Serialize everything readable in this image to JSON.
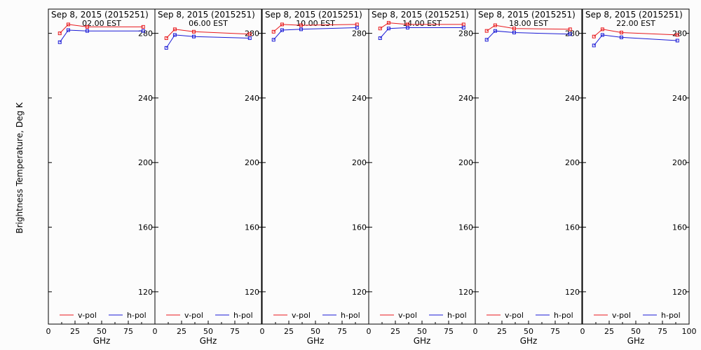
{
  "ylabel": "Brightness Temperature, Deg K",
  "xlabel": "GHz",
  "colors": {
    "vpol": "#e8181c",
    "hpol": "#1a1ad6",
    "axis": "#000000",
    "background": "#fcfcfc"
  },
  "chart_data": [
    {
      "type": "line",
      "title": "Sep  8, 2015 (2015251)",
      "subtitle": "02.00 EST",
      "x": [
        10.7,
        18.7,
        36.5,
        89.0
      ],
      "xlim": [
        0,
        100
      ],
      "ylim": [
        100,
        295
      ],
      "yticks": [
        120,
        160,
        200,
        240,
        280
      ],
      "xticks": [
        0,
        25,
        50,
        75
      ],
      "series": [
        {
          "name": "v-pol",
          "values": [
            280.0,
            285.5,
            284.0,
            284.0
          ]
        },
        {
          "name": "h-pol",
          "values": [
            274.5,
            282.0,
            281.5,
            281.5
          ]
        }
      ]
    },
    {
      "type": "line",
      "title": "Sep  8, 2015 (2015251)",
      "subtitle": "06.00 EST",
      "x": [
        10.7,
        18.7,
        36.5,
        89.0
      ],
      "xlim": [
        0,
        100
      ],
      "ylim": [
        100,
        295
      ],
      "yticks": [
        120,
        160,
        200,
        240,
        280
      ],
      "xticks": [
        0,
        25,
        50,
        75
      ],
      "series": [
        {
          "name": "v-pol",
          "values": [
            277.0,
            282.5,
            281.0,
            279.5
          ]
        },
        {
          "name": "h-pol",
          "values": [
            271.0,
            279.0,
            278.0,
            277.0
          ]
        }
      ]
    },
    {
      "type": "line",
      "title": "Sep  8, 2015 (2015251)",
      "subtitle": "10.00 EST",
      "x": [
        10.7,
        18.7,
        36.5,
        89.0
      ],
      "xlim": [
        0,
        100
      ],
      "ylim": [
        100,
        295
      ],
      "yticks": [
        120,
        160,
        200,
        240,
        280
      ],
      "xticks": [
        0,
        25,
        50,
        75
      ],
      "series": [
        {
          "name": "v-pol",
          "values": [
            281.0,
            285.5,
            285.0,
            285.5
          ]
        },
        {
          "name": "h-pol",
          "values": [
            276.0,
            282.0,
            282.5,
            283.5
          ]
        }
      ]
    },
    {
      "type": "line",
      "title": "Sep  8, 2015 (2015251)",
      "subtitle": "14.00 EST",
      "x": [
        10.7,
        18.7,
        36.5,
        89.0
      ],
      "xlim": [
        0,
        100
      ],
      "ylim": [
        100,
        295
      ],
      "yticks": [
        120,
        160,
        200,
        240,
        280
      ],
      "xticks": [
        0,
        25,
        50,
        75
      ],
      "series": [
        {
          "name": "v-pol",
          "values": [
            283.0,
            286.5,
            285.5,
            285.5
          ]
        },
        {
          "name": "h-pol",
          "values": [
            277.0,
            283.0,
            283.5,
            283.5
          ]
        }
      ]
    },
    {
      "type": "line",
      "title": "Sep  8, 2015 (2015251)",
      "subtitle": "18.00 EST",
      "x": [
        10.7,
        18.7,
        36.5,
        89.0
      ],
      "xlim": [
        0,
        100
      ],
      "ylim": [
        100,
        295
      ],
      "yticks": [
        120,
        160,
        200,
        240,
        280
      ],
      "xticks": [
        0,
        25,
        50,
        75
      ],
      "series": [
        {
          "name": "v-pol",
          "values": [
            281.5,
            285.0,
            283.0,
            282.5
          ]
        },
        {
          "name": "h-pol",
          "values": [
            276.0,
            281.5,
            280.5,
            279.5
          ]
        }
      ]
    },
    {
      "type": "line",
      "title": "Sep  8, 2015 (2015251)",
      "subtitle": "22.00 EST",
      "x": [
        10.7,
        18.7,
        36.5,
        89.0
      ],
      "xlim": [
        0,
        100
      ],
      "ylim": [
        100,
        295
      ],
      "yticks": [
        120,
        160,
        200,
        240,
        280
      ],
      "xticks": [
        0,
        25,
        50,
        75,
        100
      ],
      "series": [
        {
          "name": "v-pol",
          "values": [
            278.0,
            282.5,
            280.5,
            279.0
          ]
        },
        {
          "name": "h-pol",
          "values": [
            272.5,
            279.0,
            277.5,
            275.5
          ]
        }
      ]
    }
  ]
}
